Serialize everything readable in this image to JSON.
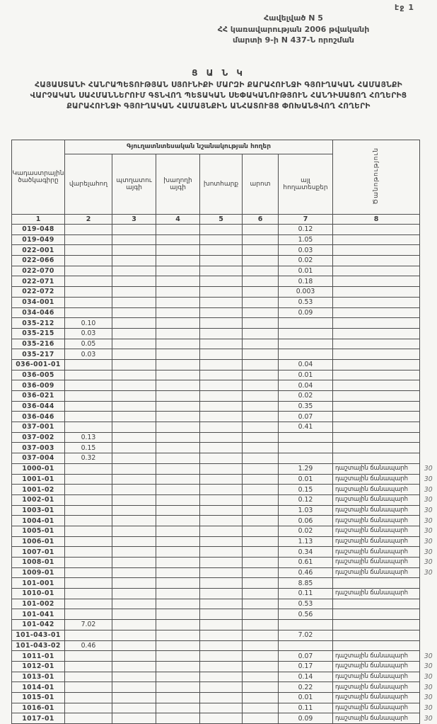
{
  "page": {
    "page_label": "էջ 1"
  },
  "appendix": {
    "line1": "Հավելված N 5",
    "line2": "ՀՀ կառավարության 2006 թվականի",
    "line3": "մարտի 9-ի N 437-Ն որոշման"
  },
  "title": {
    "heading": "Ց Ա Ն Կ",
    "body": "ՀԱՅԱՍՏԱՆԻ ՀԱՆՐԱՊԵՏՈՒԹՅԱՆ ՍՅՈՒՆԻՔԻ ՄԱՐԶԻ ՔԱՐԱՀՈՒՆՋԻ ԳՅՈՒՂԱԿԱՆ ՀԱՄԱՅՆՔԻ ՎԱՐՉԱԿԱՆ ՍԱՀՄԱՆՆԵՐՈՒՄ ԳՏՆՎՈՂ ՊԵՏԱԿԱՆ ՍԵՓԱԿԱՆՈՒԹՅՈՒՆ ՀԱՆԴԻՍԱՑՈՂ ՀՈՂԵՐԻՑ ՔԱՐԱՀՈՒՆՋԻ ԳՅՈՒՂԱԿԱՆ ՀԱՄԱՅՆՔԻՆ ԱՆՀԱՏՈՒՅՑ ՓՈԽԱՆՑՎՈՂ ՀՈՂԵՐԻ"
  },
  "table": {
    "code_header": "Կադաստրային ծածկագիրը",
    "group_header": "Գյուղատնտեսական նշանակության հողեր",
    "note_header": "Ծանոթություն",
    "columns": [
      "վարելահող",
      "պտղատու այգի",
      "խաղողի այգի",
      "խոտհարք",
      "արոտ",
      "այլ հողատեսքեր"
    ],
    "column_numbers": [
      "1",
      "2",
      "3",
      "4",
      "5",
      "6",
      "7",
      "8"
    ],
    "rows": [
      [
        "019-048",
        "",
        "",
        "",
        "",
        "",
        "0.12",
        "",
        ""
      ],
      [
        "019-049",
        "",
        "",
        "",
        "",
        "",
        "1.05",
        "",
        ""
      ],
      [
        "022-001",
        "",
        "",
        "",
        "",
        "",
        "0.03",
        "",
        ""
      ],
      [
        "022-066",
        "",
        "",
        "",
        "",
        "",
        "0.02",
        "",
        ""
      ],
      [
        "022-070",
        "",
        "",
        "",
        "",
        "",
        "0.01",
        "",
        ""
      ],
      [
        "022-071",
        "",
        "",
        "",
        "",
        "",
        "0.18",
        "",
        ""
      ],
      [
        "022-072",
        "",
        "",
        "",
        "",
        "",
        "0.003",
        "",
        ""
      ],
      [
        "034-001",
        "",
        "",
        "",
        "",
        "",
        "0.53",
        "",
        ""
      ],
      [
        "034-046",
        "",
        "",
        "",
        "",
        "",
        "0.09",
        "",
        ""
      ],
      [
        "035-212",
        "0.10",
        "",
        "",
        "",
        "",
        "",
        "",
        ""
      ],
      [
        "035-215",
        "0.03",
        "",
        "",
        "",
        "",
        "",
        "",
        ""
      ],
      [
        "035-216",
        "0.05",
        "",
        "",
        "",
        "",
        "",
        "",
        ""
      ],
      [
        "035-217",
        "0.03",
        "",
        "",
        "",
        "",
        "",
        "",
        ""
      ],
      [
        "036-001-01",
        "",
        "",
        "",
        "",
        "",
        "0.04",
        "",
        ""
      ],
      [
        "036-005",
        "",
        "",
        "",
        "",
        "",
        "0.01",
        "",
        ""
      ],
      [
        "036-009",
        "",
        "",
        "",
        "",
        "",
        "0.04",
        "",
        ""
      ],
      [
        "036-021",
        "",
        "",
        "",
        "",
        "",
        "0.02",
        "",
        ""
      ],
      [
        "036-044",
        "",
        "",
        "",
        "",
        "",
        "0.35",
        "",
        ""
      ],
      [
        "036-046",
        "",
        "",
        "",
        "",
        "",
        "0.07",
        "",
        ""
      ],
      [
        "037-001",
        "",
        "",
        "",
        "",
        "",
        "0.41",
        "",
        ""
      ],
      [
        "037-002",
        "0.13",
        "",
        "",
        "",
        "",
        "",
        "",
        ""
      ],
      [
        "037-003",
        "0.15",
        "",
        "",
        "",
        "",
        "",
        "",
        ""
      ],
      [
        "037-004",
        "0.32",
        "",
        "",
        "",
        "",
        "",
        "",
        ""
      ],
      [
        "1000-01",
        "",
        "",
        "",
        "",
        "",
        "1.29",
        "դաշտային ճանապարհ",
        "30"
      ],
      [
        "1001-01",
        "",
        "",
        "",
        "",
        "",
        "0.01",
        "դաշտային ճանապարհ",
        "30"
      ],
      [
        "1001-02",
        "",
        "",
        "",
        "",
        "",
        "0.15",
        "դաշտային ճանապարհ",
        "30"
      ],
      [
        "1002-01",
        "",
        "",
        "",
        "",
        "",
        "0.12",
        "դաշտային ճանապարհ",
        "30"
      ],
      [
        "1003-01",
        "",
        "",
        "",
        "",
        "",
        "1.03",
        "դաշտային ճանապարհ",
        "30"
      ],
      [
        "1004-01",
        "",
        "",
        "",
        "",
        "",
        "0.06",
        "դաշտային ճանապարհ",
        "30"
      ],
      [
        "1005-01",
        "",
        "",
        "",
        "",
        "",
        "0.02",
        "դաշտային ճանապարհ",
        "30"
      ],
      [
        "1006-01",
        "",
        "",
        "",
        "",
        "",
        "1.13",
        "դաշտային ճանապարհ",
        "30"
      ],
      [
        "1007-01",
        "",
        "",
        "",
        "",
        "",
        "0.34",
        "դաշտային ճանապարհ",
        "30"
      ],
      [
        "1008-01",
        "",
        "",
        "",
        "",
        "",
        "0.61",
        "դաշտային ճանապարհ",
        "30"
      ],
      [
        "1009-01",
        "",
        "",
        "",
        "",
        "",
        "0.46",
        "դաշտային ճանապարհ",
        "30"
      ],
      [
        "101-001",
        "",
        "",
        "",
        "",
        "",
        "8.85",
        "",
        ""
      ],
      [
        "1010-01",
        "",
        "",
        "",
        "",
        "",
        "0.11",
        "դաշտային ճանապարհ",
        ""
      ],
      [
        "101-002",
        "",
        "",
        "",
        "",
        "",
        "0.53",
        "",
        ""
      ],
      [
        "101-041",
        "",
        "",
        "",
        "",
        "",
        "0.56",
        "",
        ""
      ],
      [
        "101-042",
        "7.02",
        "",
        "",
        "",
        "",
        "",
        "",
        ""
      ],
      [
        "101-043-01",
        "",
        "",
        "",
        "",
        "",
        "7.02",
        "",
        ""
      ],
      [
        "101-043-02",
        "0.46",
        "",
        "",
        "",
        "",
        "",
        "",
        ""
      ],
      [
        "1011-01",
        "",
        "",
        "",
        "",
        "",
        "0.07",
        "դաշտային ճանապարհ",
        "30"
      ],
      [
        "1012-01",
        "",
        "",
        "",
        "",
        "",
        "0.17",
        "դաշտային ճանապարհ",
        "30"
      ],
      [
        "1013-01",
        "",
        "",
        "",
        "",
        "",
        "0.14",
        "դաշտային ճանապարհ",
        "30"
      ],
      [
        "1014-01",
        "",
        "",
        "",
        "",
        "",
        "0.22",
        "դաշտային ճանապարհ",
        "30"
      ],
      [
        "1015-01",
        "",
        "",
        "",
        "",
        "",
        "0.01",
        "դաշտային ճանապարհ",
        "30"
      ],
      [
        "1016-01",
        "",
        "",
        "",
        "",
        "",
        "0.11",
        "դաշտային ճանապարհ",
        "30"
      ],
      [
        "1017-01",
        "",
        "",
        "",
        "",
        "",
        "0.09",
        "դաշտային ճանապարհ",
        "30"
      ]
    ]
  }
}
